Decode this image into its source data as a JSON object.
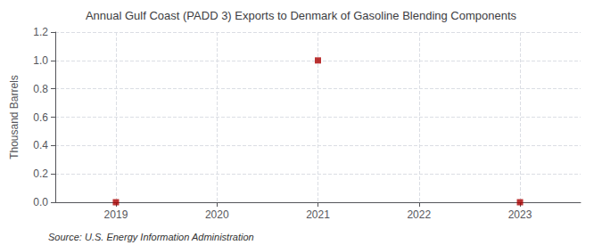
{
  "chart_data": {
    "type": "scatter",
    "title": "Annual Gulf Coast (PADD 3) Exports to Denmark of Gasoline Blending Components",
    "ylabel": "Thousand Barrels",
    "annotation": "Source: U.S. Energy Information Administration",
    "x": [
      2019,
      2021,
      2023
    ],
    "values": [
      0.0,
      1.0,
      0.0
    ],
    "color": "#aa0000",
    "marker": "square",
    "xlim": [
      2018.4,
      2023.6
    ],
    "xticks": [
      2019,
      2020,
      2021,
      2022,
      2023
    ],
    "ylim": [
      0.0,
      1.2
    ],
    "yticks": [
      {
        "value": 0.0,
        "label": "0.0"
      },
      0.2,
      0.4,
      0.6,
      0.8,
      {
        "value": 1.0,
        "label": "1.0"
      },
      1.2
    ],
    "grid": true
  }
}
